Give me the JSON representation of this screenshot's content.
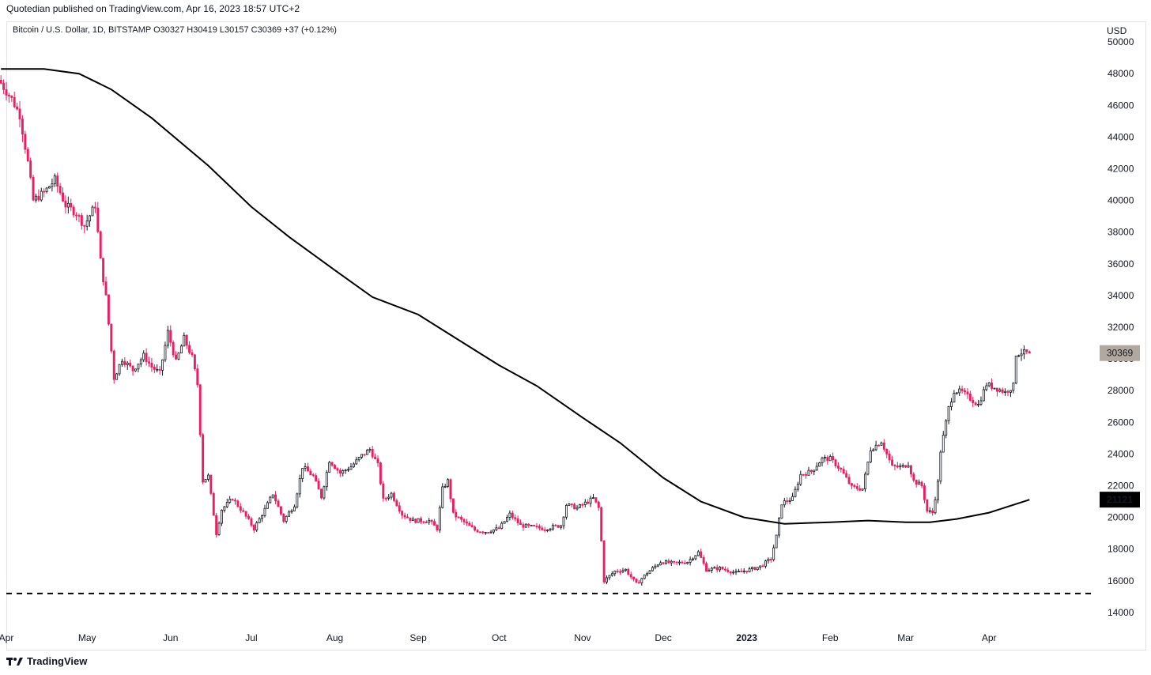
{
  "header": {
    "publisher_line": "Quotedian published on TradingView.com, Apr 16, 2023 18:57 UTC+2",
    "symbol_line": "Bitcoin / U.S. Dollar, 1D, BITSTAMP  O30327  H30419  L30157  C30369  +37 (+0.12%)",
    "currency": "USD"
  },
  "footer": {
    "brand": "TradingView",
    "logo_icon": "tradingview-logo-icon"
  },
  "colors": {
    "up": "#131722",
    "down": "#e91e63",
    "wick": "#131722",
    "ma_line": "#000000",
    "last_price_badge": "#b2a99e",
    "ma_badge": "#000000"
  },
  "chart_data": {
    "type": "candlestick",
    "symbol": "Bitcoin / U.S. Dollar",
    "interval": "1D",
    "exchange": "BITSTAMP",
    "ohlc_last": {
      "open": 30327,
      "high": 30419,
      "low": 30157,
      "close": 30369,
      "change": 37,
      "change_pct": "+0.12%"
    },
    "y_axis": {
      "unit": "USD",
      "ylim": [
        13000,
        51300
      ],
      "ticks": [
        14000,
        16000,
        18000,
        20000,
        22000,
        24000,
        26000,
        28000,
        30000,
        32000,
        34000,
        36000,
        38000,
        40000,
        42000,
        44000,
        46000,
        48000,
        50000
      ]
    },
    "x_axis": {
      "start_date": "2022-04-01",
      "end_date": "2023-05-10",
      "ticks": [
        {
          "label": "Apr",
          "date": "2022-04-01",
          "bold": false
        },
        {
          "label": "May",
          "date": "2022-05-01",
          "bold": false
        },
        {
          "label": "Jun",
          "date": "2022-06-01",
          "bold": false
        },
        {
          "label": "Jul",
          "date": "2022-07-01",
          "bold": false
        },
        {
          "label": "Aug",
          "date": "2022-08-01",
          "bold": false
        },
        {
          "label": "Sep",
          "date": "2022-09-01",
          "bold": false
        },
        {
          "label": "Oct",
          "date": "2022-10-01",
          "bold": false
        },
        {
          "label": "Nov",
          "date": "2022-11-01",
          "bold": false
        },
        {
          "label": "Dec",
          "date": "2022-12-01",
          "bold": false
        },
        {
          "label": "2023",
          "date": "2023-01-01",
          "bold": true
        },
        {
          "label": "Feb",
          "date": "2023-02-01",
          "bold": false
        },
        {
          "label": "Mar",
          "date": "2023-03-01",
          "bold": false
        },
        {
          "label": "Apr",
          "date": "2023-04-01",
          "bold": false
        }
      ]
    },
    "price_close_path": [
      [
        "2022-03-30",
        47400
      ],
      [
        "2022-04-03",
        46400
      ],
      [
        "2022-04-06",
        45400
      ],
      [
        "2022-04-09",
        42400
      ],
      [
        "2022-04-11",
        40000
      ],
      [
        "2022-04-15",
        40500
      ],
      [
        "2022-04-19",
        41300
      ],
      [
        "2022-04-23",
        39700
      ],
      [
        "2022-04-27",
        39200
      ],
      [
        "2022-04-30",
        38400
      ],
      [
        "2022-05-04",
        39700
      ],
      [
        "2022-05-06",
        36200
      ],
      [
        "2022-05-08",
        33900
      ],
      [
        "2022-05-11",
        28800
      ],
      [
        "2022-05-14",
        30000
      ],
      [
        "2022-05-18",
        29300
      ],
      [
        "2022-05-22",
        30200
      ],
      [
        "2022-05-25",
        29500
      ],
      [
        "2022-05-28",
        29100
      ],
      [
        "2022-05-31",
        31700
      ],
      [
        "2022-06-03",
        29800
      ],
      [
        "2022-06-06",
        31300
      ],
      [
        "2022-06-09",
        30100
      ],
      [
        "2022-06-11",
        28400
      ],
      [
        "2022-06-13",
        22300
      ],
      [
        "2022-06-15",
        22600
      ],
      [
        "2022-06-18",
        19000
      ],
      [
        "2022-06-20",
        20500
      ],
      [
        "2022-06-24",
        21200
      ],
      [
        "2022-06-28",
        20300
      ],
      [
        "2022-07-02",
        19300
      ],
      [
        "2022-07-06",
        20500
      ],
      [
        "2022-07-09",
        21500
      ],
      [
        "2022-07-13",
        19800
      ],
      [
        "2022-07-17",
        20800
      ],
      [
        "2022-07-20",
        23200
      ],
      [
        "2022-07-24",
        22600
      ],
      [
        "2022-07-27",
        21300
      ],
      [
        "2022-07-30",
        23600
      ],
      [
        "2022-08-03",
        22800
      ],
      [
        "2022-08-07",
        23200
      ],
      [
        "2022-08-11",
        23900
      ],
      [
        "2022-08-14",
        24300
      ],
      [
        "2022-08-17",
        23300
      ],
      [
        "2022-08-19",
        21100
      ],
      [
        "2022-08-22",
        21500
      ],
      [
        "2022-08-26",
        20200
      ],
      [
        "2022-08-30",
        19800
      ],
      [
        "2022-09-05",
        19800
      ],
      [
        "2022-09-08",
        19300
      ],
      [
        "2022-09-10",
        21800
      ],
      [
        "2022-09-12",
        22300
      ],
      [
        "2022-09-14",
        20200
      ],
      [
        "2022-09-18",
        19700
      ],
      [
        "2022-09-22",
        19200
      ],
      [
        "2022-09-26",
        19100
      ],
      [
        "2022-10-01",
        19300
      ],
      [
        "2022-10-05",
        20200
      ],
      [
        "2022-10-09",
        19500
      ],
      [
        "2022-10-13",
        19400
      ],
      [
        "2022-10-18",
        19300
      ],
      [
        "2022-10-24",
        19500
      ],
      [
        "2022-10-26",
        20800
      ],
      [
        "2022-10-30",
        20600
      ],
      [
        "2022-11-05",
        21200
      ],
      [
        "2022-11-07",
        20600
      ],
      [
        "2022-11-08",
        18500
      ],
      [
        "2022-11-09",
        16000
      ],
      [
        "2022-11-13",
        16600
      ],
      [
        "2022-11-17",
        16700
      ],
      [
        "2022-11-21",
        15800
      ],
      [
        "2022-11-25",
        16500
      ],
      [
        "2022-11-30",
        17200
      ],
      [
        "2022-12-05",
        17100
      ],
      [
        "2022-12-10",
        17200
      ],
      [
        "2022-12-14",
        17800
      ],
      [
        "2022-12-17",
        16700
      ],
      [
        "2022-12-22",
        16800
      ],
      [
        "2022-12-28",
        16500
      ],
      [
        "2023-01-02",
        16700
      ],
      [
        "2023-01-06",
        16900
      ],
      [
        "2023-01-10",
        17400
      ],
      [
        "2023-01-12",
        18800
      ],
      [
        "2023-01-14",
        20900
      ],
      [
        "2023-01-18",
        21200
      ],
      [
        "2023-01-21",
        22700
      ],
      [
        "2023-01-25",
        22900
      ],
      [
        "2023-01-29",
        23700
      ],
      [
        "2023-02-01",
        23700
      ],
      [
        "2023-02-05",
        23000
      ],
      [
        "2023-02-09",
        21900
      ],
      [
        "2023-02-13",
        21800
      ],
      [
        "2023-02-16",
        24300
      ],
      [
        "2023-02-20",
        24800
      ],
      [
        "2023-02-24",
        23200
      ],
      [
        "2023-02-28",
        23200
      ],
      [
        "2023-03-02",
        23400
      ],
      [
        "2023-03-04",
        22300
      ],
      [
        "2023-03-07",
        22000
      ],
      [
        "2023-03-09",
        20400
      ],
      [
        "2023-03-11",
        20300
      ],
      [
        "2023-03-13",
        22200
      ],
      [
        "2023-03-14",
        24200
      ],
      [
        "2023-03-17",
        26900
      ],
      [
        "2023-03-19",
        28000
      ],
      [
        "2023-03-22",
        27900
      ],
      [
        "2023-03-25",
        27500
      ],
      [
        "2023-03-28",
        27100
      ],
      [
        "2023-03-31",
        28400
      ],
      [
        "2023-04-03",
        28200
      ],
      [
        "2023-04-07",
        27900
      ],
      [
        "2023-04-10",
        28300
      ],
      [
        "2023-04-11",
        30300
      ],
      [
        "2023-04-13",
        30400
      ],
      [
        "2023-04-16",
        30369
      ]
    ],
    "moving_average": {
      "points": [
        [
          "2022-03-30",
          48300
        ],
        [
          "2022-04-15",
          48300
        ],
        [
          "2022-04-28",
          48000
        ],
        [
          "2022-05-10",
          47000
        ],
        [
          "2022-05-25",
          45200
        ],
        [
          "2022-06-15",
          42200
        ],
        [
          "2022-07-01",
          39600
        ],
        [
          "2022-07-15",
          37700
        ],
        [
          "2022-08-01",
          35600
        ],
        [
          "2022-08-15",
          33900
        ],
        [
          "2022-09-01",
          32800
        ],
        [
          "2022-09-15",
          31300
        ],
        [
          "2022-10-01",
          29600
        ],
        [
          "2022-10-15",
          28300
        ],
        [
          "2022-11-01",
          26300
        ],
        [
          "2022-11-15",
          24700
        ],
        [
          "2022-12-01",
          22500
        ],
        [
          "2022-12-15",
          21000
        ],
        [
          "2022-12-31",
          20000
        ],
        [
          "2023-01-15",
          19600
        ],
        [
          "2023-02-01",
          19700
        ],
        [
          "2023-02-15",
          19800
        ],
        [
          "2023-03-01",
          19700
        ],
        [
          "2023-03-10",
          19700
        ],
        [
          "2023-03-20",
          19900
        ],
        [
          "2023-04-01",
          20300
        ],
        [
          "2023-04-16",
          21121
        ]
      ],
      "last_value": "21121"
    },
    "support_line": {
      "value": 15200,
      "style": "dashed"
    },
    "last_price_label": "30369",
    "ma_label": "21121"
  }
}
